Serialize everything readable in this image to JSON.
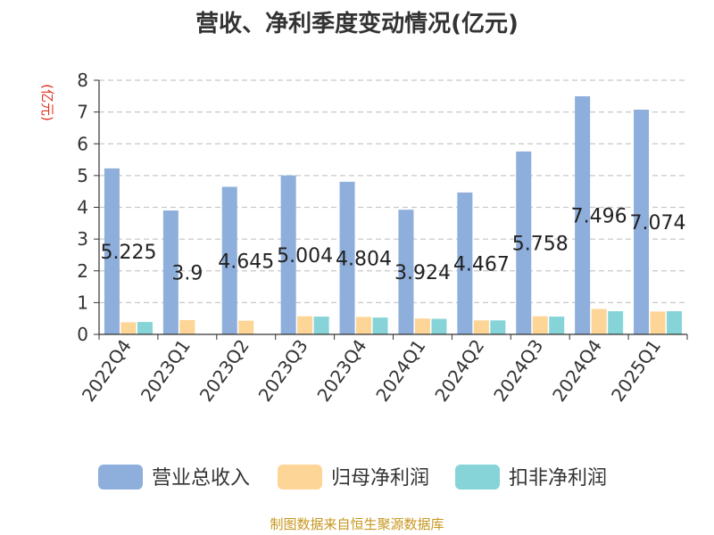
{
  "title": "营收、净利季度变动情况(亿元)",
  "source": "制图数据来自恒生聚源数据库",
  "chart_data": {
    "type": "bar",
    "title": "营收、净利季度变动情况(亿元)",
    "ylabel": "(亿元)",
    "xlabel": "",
    "ylim": [
      0,
      8
    ],
    "yticks": [
      0,
      1,
      2,
      3,
      4,
      5,
      6,
      7,
      8
    ],
    "grid": true,
    "legend_position": "bottom",
    "categories": [
      "2022Q4",
      "2023Q1",
      "2023Q2",
      "2023Q3",
      "2023Q4",
      "2024Q1",
      "2024Q2",
      "2024Q3",
      "2024Q4",
      "2025Q1"
    ],
    "series": [
      {
        "name": "营业总收入",
        "color": "#8eaedb",
        "values": [
          5.225,
          3.9,
          4.645,
          5.004,
          4.804,
          3.924,
          4.467,
          5.758,
          7.496,
          7.074
        ],
        "labels": [
          "5.225",
          "3.9",
          "4.645",
          "5.004",
          "4.804",
          "3.924",
          "4.467",
          "5.758",
          "7.496",
          "7.074"
        ]
      },
      {
        "name": "归母净利润",
        "color": "#fdd597",
        "values": [
          0.38,
          0.45,
          0.43,
          0.57,
          0.55,
          0.5,
          0.44,
          0.57,
          0.8,
          0.72
        ]
      },
      {
        "name": "扣非净利润",
        "color": "#86d4d8",
        "values": [
          0.39,
          null,
          null,
          0.56,
          0.53,
          0.49,
          0.44,
          0.56,
          0.73,
          0.73
        ]
      }
    ]
  }
}
